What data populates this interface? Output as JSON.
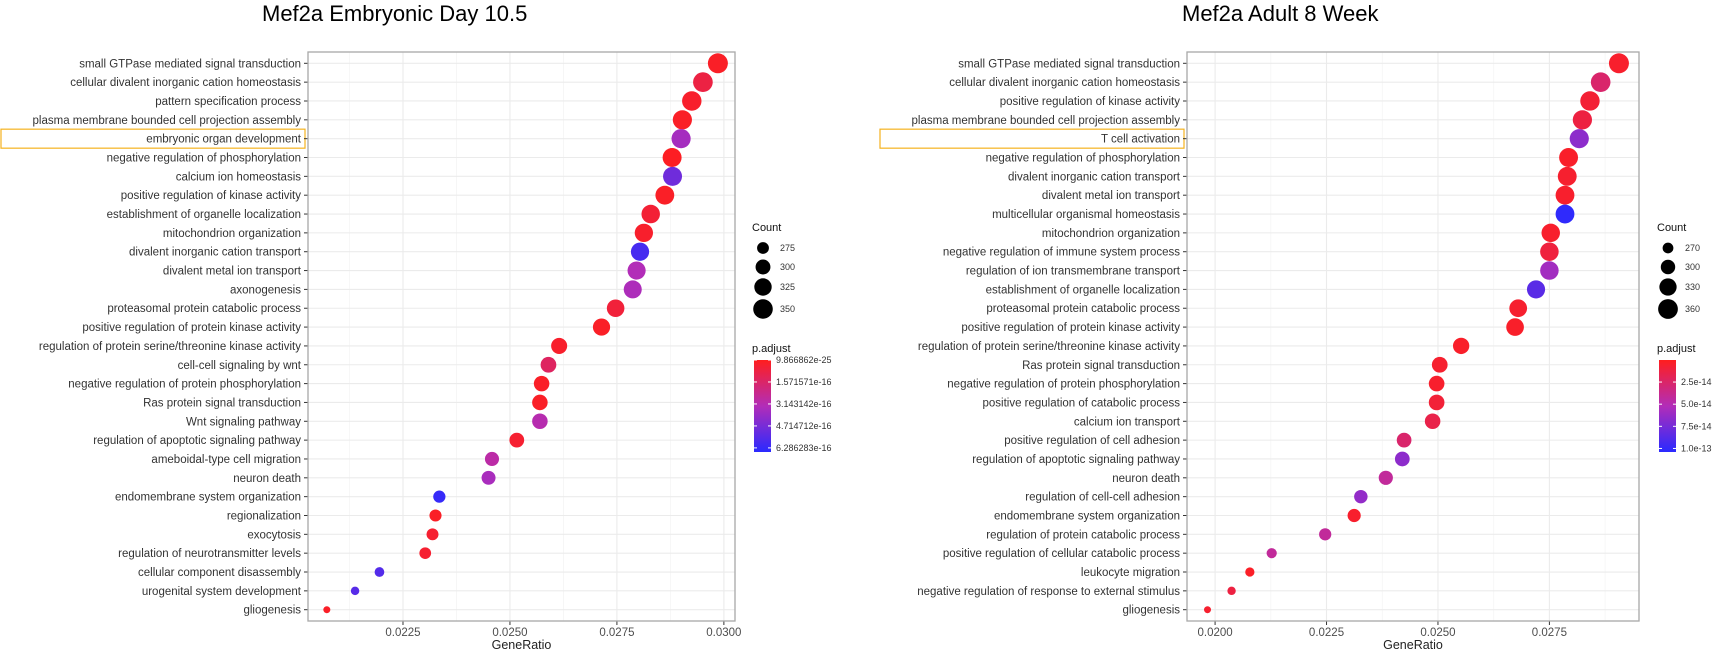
{
  "chart_data": [
    {
      "type": "scatter",
      "title": "Mef2a Embryonic Day 10.5",
      "xlabel": "GeneRatio",
      "ylabel": "",
      "xlim": [
        0.02028,
        0.03026
      ],
      "x_ticks": [
        "0.0225",
        "0.0250",
        "0.0275",
        "0.0300"
      ],
      "x_tick_values": [
        0.0225,
        0.025,
        0.0275,
        0.03
      ],
      "grid": true,
      "highlighted_category": "embryonic organ development",
      "highlight_color": "#F5B21E",
      "categories": [
        "small GTPase mediated signal transduction",
        "cellular divalent inorganic cation homeostasis",
        "pattern specification process",
        "plasma membrane bounded cell projection assembly",
        "embryonic organ development",
        "negative regulation of phosphorylation",
        "calcium ion homeostasis",
        "positive regulation of kinase activity",
        "establishment of organelle localization",
        "mitochondrion organization",
        "divalent inorganic cation transport",
        "divalent metal ion transport",
        "axonogenesis",
        "proteasomal protein catabolic process",
        "positive regulation of protein kinase activity",
        "regulation of protein serine/threonine kinase activity",
        "cell-cell signaling by wnt",
        "negative regulation of protein phosphorylation",
        "Ras protein signal transduction",
        "Wnt signaling pathway",
        "regulation of apoptotic signaling pathway",
        "ameboidal-type cell migration",
        "neuron death",
        "endomembrane system organization",
        "regionalization",
        "exocytosis",
        "regulation of neurotransmitter levels",
        "cellular component disassembly",
        "urogenital system development",
        "gliogenesis"
      ],
      "gene_ratio": [
        0.02986,
        0.02951,
        0.02925,
        0.02903,
        0.029,
        0.02879,
        0.0288,
        0.02862,
        0.02829,
        0.02813,
        0.02804,
        0.02796,
        0.02787,
        0.02747,
        0.02714,
        0.02615,
        0.0259,
        0.02574,
        0.0257,
        0.0257,
        0.02516,
        0.02458,
        0.0245,
        0.02335,
        0.02326,
        0.02319,
        0.02302,
        0.02195,
        0.02138,
        0.02072
      ],
      "count": [
        355,
        351,
        348,
        345,
        345,
        343,
        343,
        341,
        337,
        335,
        334,
        333,
        332,
        327,
        323,
        311,
        308,
        306,
        306,
        306,
        299,
        293,
        292,
        278,
        277,
        276,
        274,
        261,
        254,
        247
      ],
      "p_adjust": [
        2e-17,
        8e-17,
        3e-17,
        2e-17,
        3.6e-16,
        1e-17,
        4.9e-16,
        2e-17,
        5e-17,
        3e-17,
        5.9e-16,
        3.3e-16,
        3.4e-16,
        6e-17,
        2e-17,
        3e-17,
        1.4e-16,
        2e-17,
        2e-17,
        3.1e-16,
        4e-17,
        2.9e-16,
        3.5e-16,
        6.3e-16,
        2e-17,
        4e-17,
        4e-17,
        5.6e-16,
        5.5e-16,
        2e-17
      ],
      "size_legend": {
        "title": "Count",
        "breaks": [
          275,
          300,
          325,
          350
        ],
        "labels": [
          "275",
          "300",
          "325",
          "350"
        ]
      },
      "color_legend": {
        "title": "p.adjust",
        "range": [
          9.866862e-25,
          6.58e-16
        ],
        "break_values": [
          9.866862e-25,
          1.571571e-16,
          3.143142e-16,
          4.714712e-16,
          6.286283e-16
        ],
        "labels": [
          "9.866862e-25",
          "1.571571e-16",
          "3.143142e-16",
          "4.714712e-16",
          "6.286283e-16"
        ],
        "low_color": "#FF1E1E",
        "mid_color": "#B22DB8",
        "high_color": "#2A2AFF"
      },
      "legend_position": "right"
    },
    {
      "type": "scatter",
      "title": "Mef2a Adult 8 Week",
      "xlabel": "GeneRatio",
      "ylabel": "",
      "xlim": [
        0.01937,
        0.02951
      ],
      "x_ticks": [
        "0.0200",
        "0.0225",
        "0.0250",
        "0.0275"
      ],
      "x_tick_values": [
        0.02,
        0.0225,
        0.025,
        0.0275
      ],
      "grid": true,
      "highlighted_category": "T cell activation",
      "highlight_color": "#F5B21E",
      "categories": [
        "small GTPase mediated signal transduction",
        "cellular divalent inorganic cation homeostasis",
        "positive regulation of kinase activity",
        "plasma membrane bounded cell projection assembly",
        "T cell activation",
        "negative regulation of phosphorylation",
        "divalent inorganic cation transport",
        "divalent metal ion transport",
        "multicellular organismal homeostasis",
        "mitochondrion organization",
        "negative regulation of immune system process",
        "regulation of ion transmembrane transport",
        "establishment of organelle localization",
        "proteasomal protein catabolic process",
        "positive regulation of protein kinase activity",
        "regulation of protein serine/threonine kinase activity",
        "Ras protein signal transduction",
        "negative regulation of protein phosphorylation",
        "positive regulation of catabolic process",
        "calcium ion transport",
        "positive regulation of cell adhesion",
        "regulation of apoptotic signaling pathway",
        "neuron death",
        "regulation of cell-cell adhesion",
        "endomembrane system organization",
        "regulation of protein catabolic process",
        "positive regulation of cellular catabolic process",
        "leukocyte migration",
        "negative regulation of response to external stimulus",
        "gliogenesis"
      ],
      "gene_ratio": [
        0.02906,
        0.02865,
        0.02841,
        0.02824,
        0.02817,
        0.02793,
        0.0279,
        0.02785,
        0.02785,
        0.02753,
        0.0275,
        0.0275,
        0.0272,
        0.0268,
        0.02673,
        0.02552,
        0.02504,
        0.02497,
        0.02497,
        0.02488,
        0.02424,
        0.0242,
        0.02383,
        0.02327,
        0.02312,
        0.02247,
        0.02127,
        0.02078,
        0.02037,
        0.01983
      ],
      "count": [
        363,
        358,
        355,
        353,
        352,
        349,
        349,
        348,
        348,
        344,
        344,
        344,
        340,
        335,
        334,
        319,
        313,
        312,
        312,
        311,
        303,
        303,
        298,
        291,
        289,
        281,
        266,
        260,
        255,
        248
      ],
      "p_adjust": [
        5e-15,
        2.6e-14,
        8e-15,
        1.2e-14,
        6.6e-14,
        4e-15,
        6e-15,
        5e-15,
        1.02e-13,
        5e-15,
        1.1e-14,
        5.8e-14,
        8.6e-14,
        6e-15,
        4e-15,
        4e-15,
        6e-15,
        5e-15,
        9e-15,
        1.5e-14,
        2.6e-14,
        6.6e-14,
        4.2e-14,
        6.4e-14,
        5e-15,
        4.2e-14,
        4.2e-14,
        3e-15,
        1.2e-14,
        6e-15
      ],
      "size_legend": {
        "title": "Count",
        "breaks": [
          270,
          300,
          330,
          360
        ],
        "labels": [
          "270",
          "300",
          "330",
          "360"
        ]
      },
      "color_legend": {
        "title": "p.adjust",
        "range": [
          1e-16,
          1.04e-13
        ],
        "break_values": [
          2.5e-14,
          5e-14,
          7.5e-14,
          1e-13
        ],
        "labels": [
          "2.5e-14",
          "5.0e-14",
          "7.5e-14",
          "1.0e-13"
        ],
        "low_color": "#FF1E1E",
        "mid_color": "#B22DB8",
        "high_color": "#2A2AFF"
      },
      "legend_position": "right"
    }
  ]
}
